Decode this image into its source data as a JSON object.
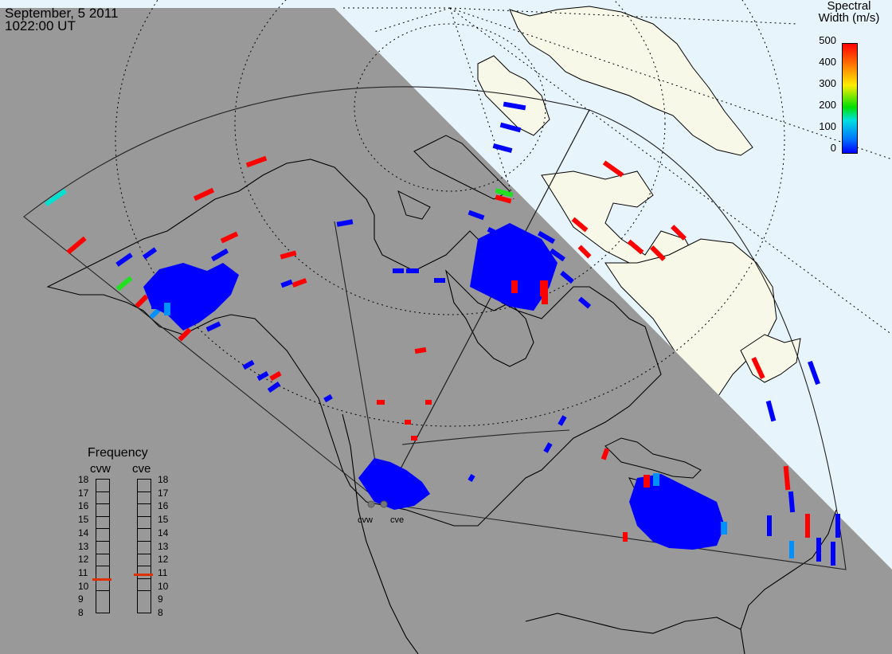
{
  "header": {
    "date": "September, 5 2011",
    "time": "1022:00 UT"
  },
  "colorbar": {
    "title_line1": "Spectral",
    "title_line2": "Width (m/s)",
    "ticks": [
      "500",
      "400",
      "300",
      "200",
      "100",
      "0"
    ],
    "range": [
      0,
      500
    ],
    "colors": [
      "#0000ff",
      "#00a0ff",
      "#00e0c0",
      "#00e000",
      "#ffee00",
      "#ff8800",
      "#ff0000"
    ]
  },
  "frequency_panel": {
    "title": "Frequency",
    "radars": [
      {
        "label": "cvw",
        "value_mhz": 10.5
      },
      {
        "label": "cve",
        "value_mhz": 10.9
      }
    ],
    "scale": [
      "18",
      "17",
      "16",
      "15",
      "14",
      "13",
      "12",
      "11",
      "10",
      "9",
      "8"
    ],
    "marker_color": "#e03000"
  },
  "radar_sites": [
    {
      "label": "cvw"
    },
    {
      "label": "cve"
    }
  ],
  "colors": {
    "night": "#999999",
    "day_ocean": "#e8f4fc",
    "day_land": "#f8f8e8",
    "scatter_low": "#0000ff",
    "scatter_high": "#ff0000"
  }
}
